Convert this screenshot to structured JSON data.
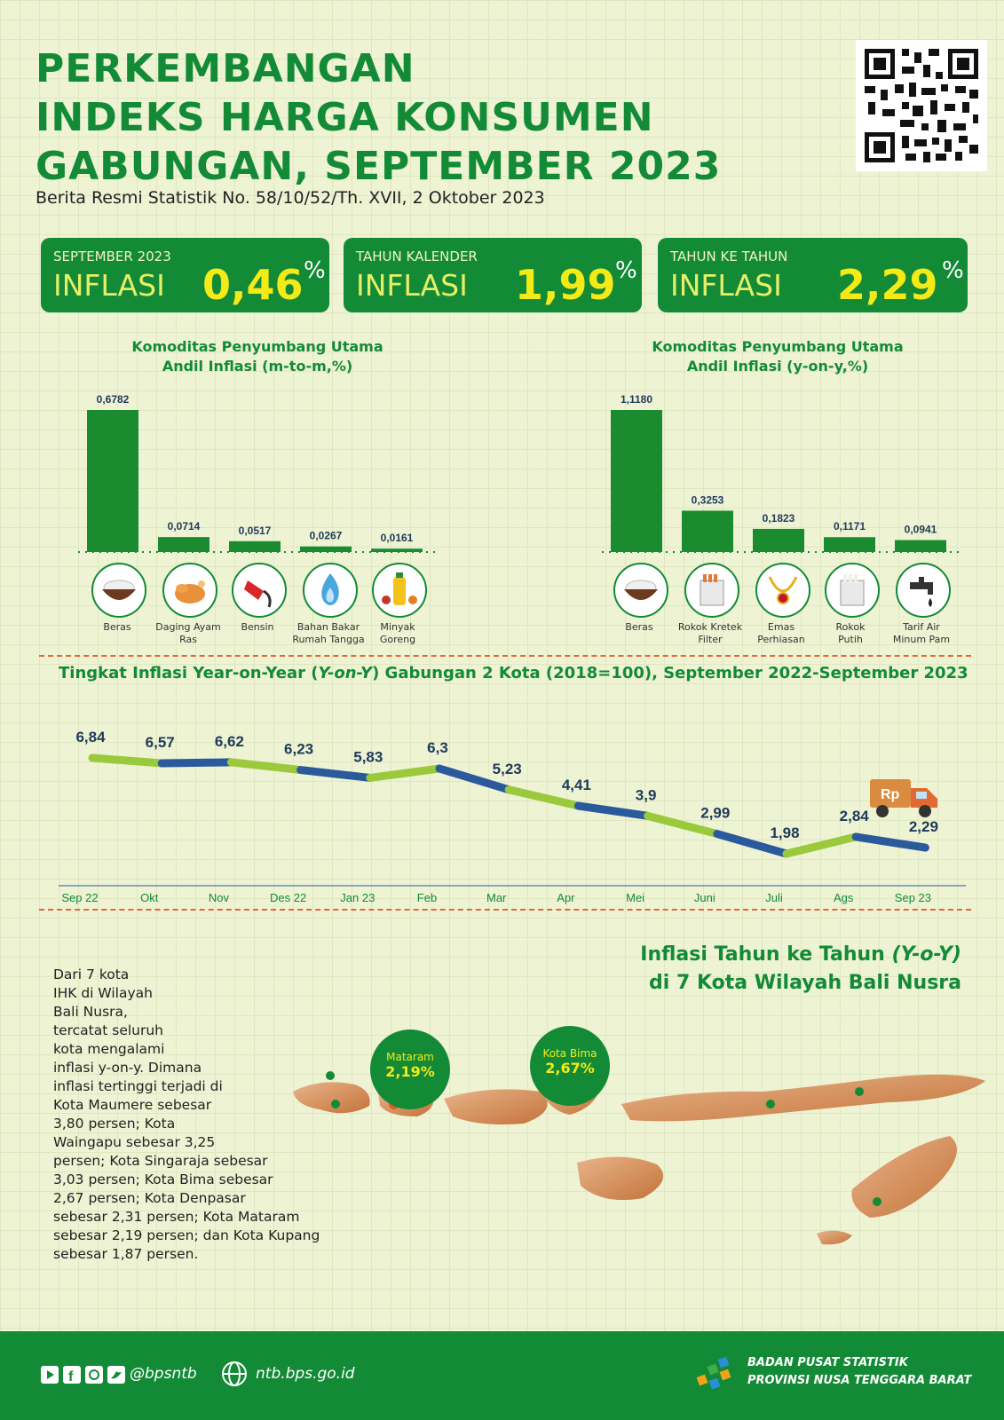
{
  "header": {
    "title_line1": "PERKEMBANGAN",
    "title_line2": "INDEKS HARGA KONSUMEN",
    "title_line3": "GABUNGAN, SEPTEMBER 2023",
    "subtitle": "Berita Resmi Statistik No. 58/10/52/Th. XVII, 2 Oktober 2023"
  },
  "boxes": [
    {
      "label": "SEPTEMBER 2023",
      "inflasi": "INFLASI",
      "value": "0,46",
      "pct": "%"
    },
    {
      "label": "TAHUN KALENDER",
      "inflasi": "INFLASI",
      "value": "1,99",
      "pct": "%"
    },
    {
      "label": "TAHUN KE TAHUN",
      "inflasi": "INFLASI",
      "value": "2,29",
      "pct": "%"
    }
  ],
  "chart_data": [
    {
      "type": "bar",
      "title": "Komoditas Penyumbang Utama\nAndil Inflasi (m-to-m,%)",
      "title_line1": "Komoditas Penyumbang Utama",
      "title_line2": "Andil Inflasi (m-to-m,%)",
      "categories": [
        "Beras",
        "Daging Ayam Ras",
        "Bensin",
        "Bahan Bakar Rumah Tangga",
        "Minyak Goreng"
      ],
      "category_lines": [
        [
          "Beras"
        ],
        [
          "Daging Ayam",
          "Ras"
        ],
        [
          "Bensin"
        ],
        [
          "Bahan Bakar",
          "Rumah Tangga"
        ],
        [
          "Minyak",
          "Goreng"
        ]
      ],
      "values": [
        0.6782,
        0.0714,
        0.0517,
        0.0267,
        0.0161
      ],
      "labels": [
        "0,6782",
        "0,0714",
        "0,0517",
        "0,0267",
        "0,0161"
      ],
      "ylim": [
        0,
        0.6782
      ],
      "bar_color": "#1a8c2f"
    },
    {
      "type": "bar",
      "title": "Komoditas Penyumbang Utama\nAndil Inflasi (y-on-y,%)",
      "title_line1": "Komoditas Penyumbang Utama",
      "title_line2": "Andil Inflasi (y-on-y,%)",
      "categories": [
        "Beras",
        "Rokok Kretek Filter",
        "Emas Perhiasan",
        "Rokok Putih",
        "Tarif Air Minum Pam"
      ],
      "category_lines": [
        [
          "Beras"
        ],
        [
          "Rokok Kretek",
          "Filter"
        ],
        [
          "Emas",
          "Perhiasan"
        ],
        [
          "Rokok",
          "Putih"
        ],
        [
          "Tarif Air",
          "Minum Pam"
        ]
      ],
      "values": [
        1.118,
        0.3253,
        0.1823,
        0.1171,
        0.0941
      ],
      "labels": [
        "1,1180",
        "0,3253",
        "0,1823",
        "0,1171",
        "0,0941"
      ],
      "ylim": [
        0,
        1.118
      ],
      "bar_color": "#1a8c2f"
    },
    {
      "type": "line",
      "title": "Tingkat Inflasi Year-on-Year (Y-on-Y) Gabungan 2 Kota (2018=100), September 2022-September 2023",
      "categories": [
        "Sep 22",
        "Okt",
        "Nov",
        "Des 22",
        "Jan 23",
        "Feb",
        "Mar",
        "Apr",
        "Mei",
        "Juni",
        "Juli",
        "Ags",
        "Sep 23"
      ],
      "values": [
        6.84,
        6.57,
        6.62,
        6.23,
        5.83,
        6.3,
        5.23,
        4.41,
        3.9,
        2.99,
        1.98,
        2.84,
        2.29
      ],
      "labels": [
        "6,84",
        "6,57",
        "6,62",
        "6,23",
        "5,83",
        "6,3",
        "5,23",
        "4,41",
        "3,9",
        "2,99",
        "1,98",
        "2,84",
        "2,29"
      ],
      "ylim": [
        1.98,
        6.84
      ],
      "segment_colors": [
        "#9bc93c",
        "#2a5a9c"
      ]
    }
  ],
  "line_title_parts": [
    "Tingkat Inflasi Year-on-Year (",
    "Y-on-Y",
    ") Gabungan 2 Kota (2018=100), September 2022-September 2023"
  ],
  "truck_label": "Rp",
  "map": {
    "title_line1a": "Inflasi Tahun ke Tahun ",
    "title_line1b": "(Y-o-Y)",
    "title_line2": "di 7 Kota Wilayah Bali Nusra",
    "pins": [
      {
        "name": "Mataram",
        "value": "2,19%"
      },
      {
        "name": "Kota Bima",
        "value": "2,67%"
      }
    ],
    "paragraph": [
      "Dari 7 kota",
      "IHK di Wilayah",
      "Bali Nusra,",
      "tercatat seluruh",
      "kota mengalami",
      "inflasi y-on-y. Dimana",
      "inflasi tertinggi terjadi di",
      "Kota Maumere sebesar",
      "3,80 persen; Kota",
      "Waingapu sebesar 3,25",
      "persen; Kota Singaraja sebesar",
      "3,03 persen; Kota Bima sebesar",
      "2,67 persen; Kota Denpasar",
      "sebesar 2,31 persen; Kota Mataram",
      "sebesar 2,19 persen; dan Kota Kupang",
      "sebesar 1,87 persen."
    ]
  },
  "footer": {
    "social": "@bpsntb",
    "website": "ntb.bps.go.id",
    "org_line1": "BADAN PUSAT STATISTIK",
    "org_line2": "PROVINSI NUSA TENGGARA BARAT"
  },
  "colors": {
    "green": "#138a36",
    "yellow": "#f3ea17",
    "orange": "#e06a32",
    "lime": "#9bc93c",
    "blue": "#2a5a9c",
    "bg": "#eef3d4"
  }
}
